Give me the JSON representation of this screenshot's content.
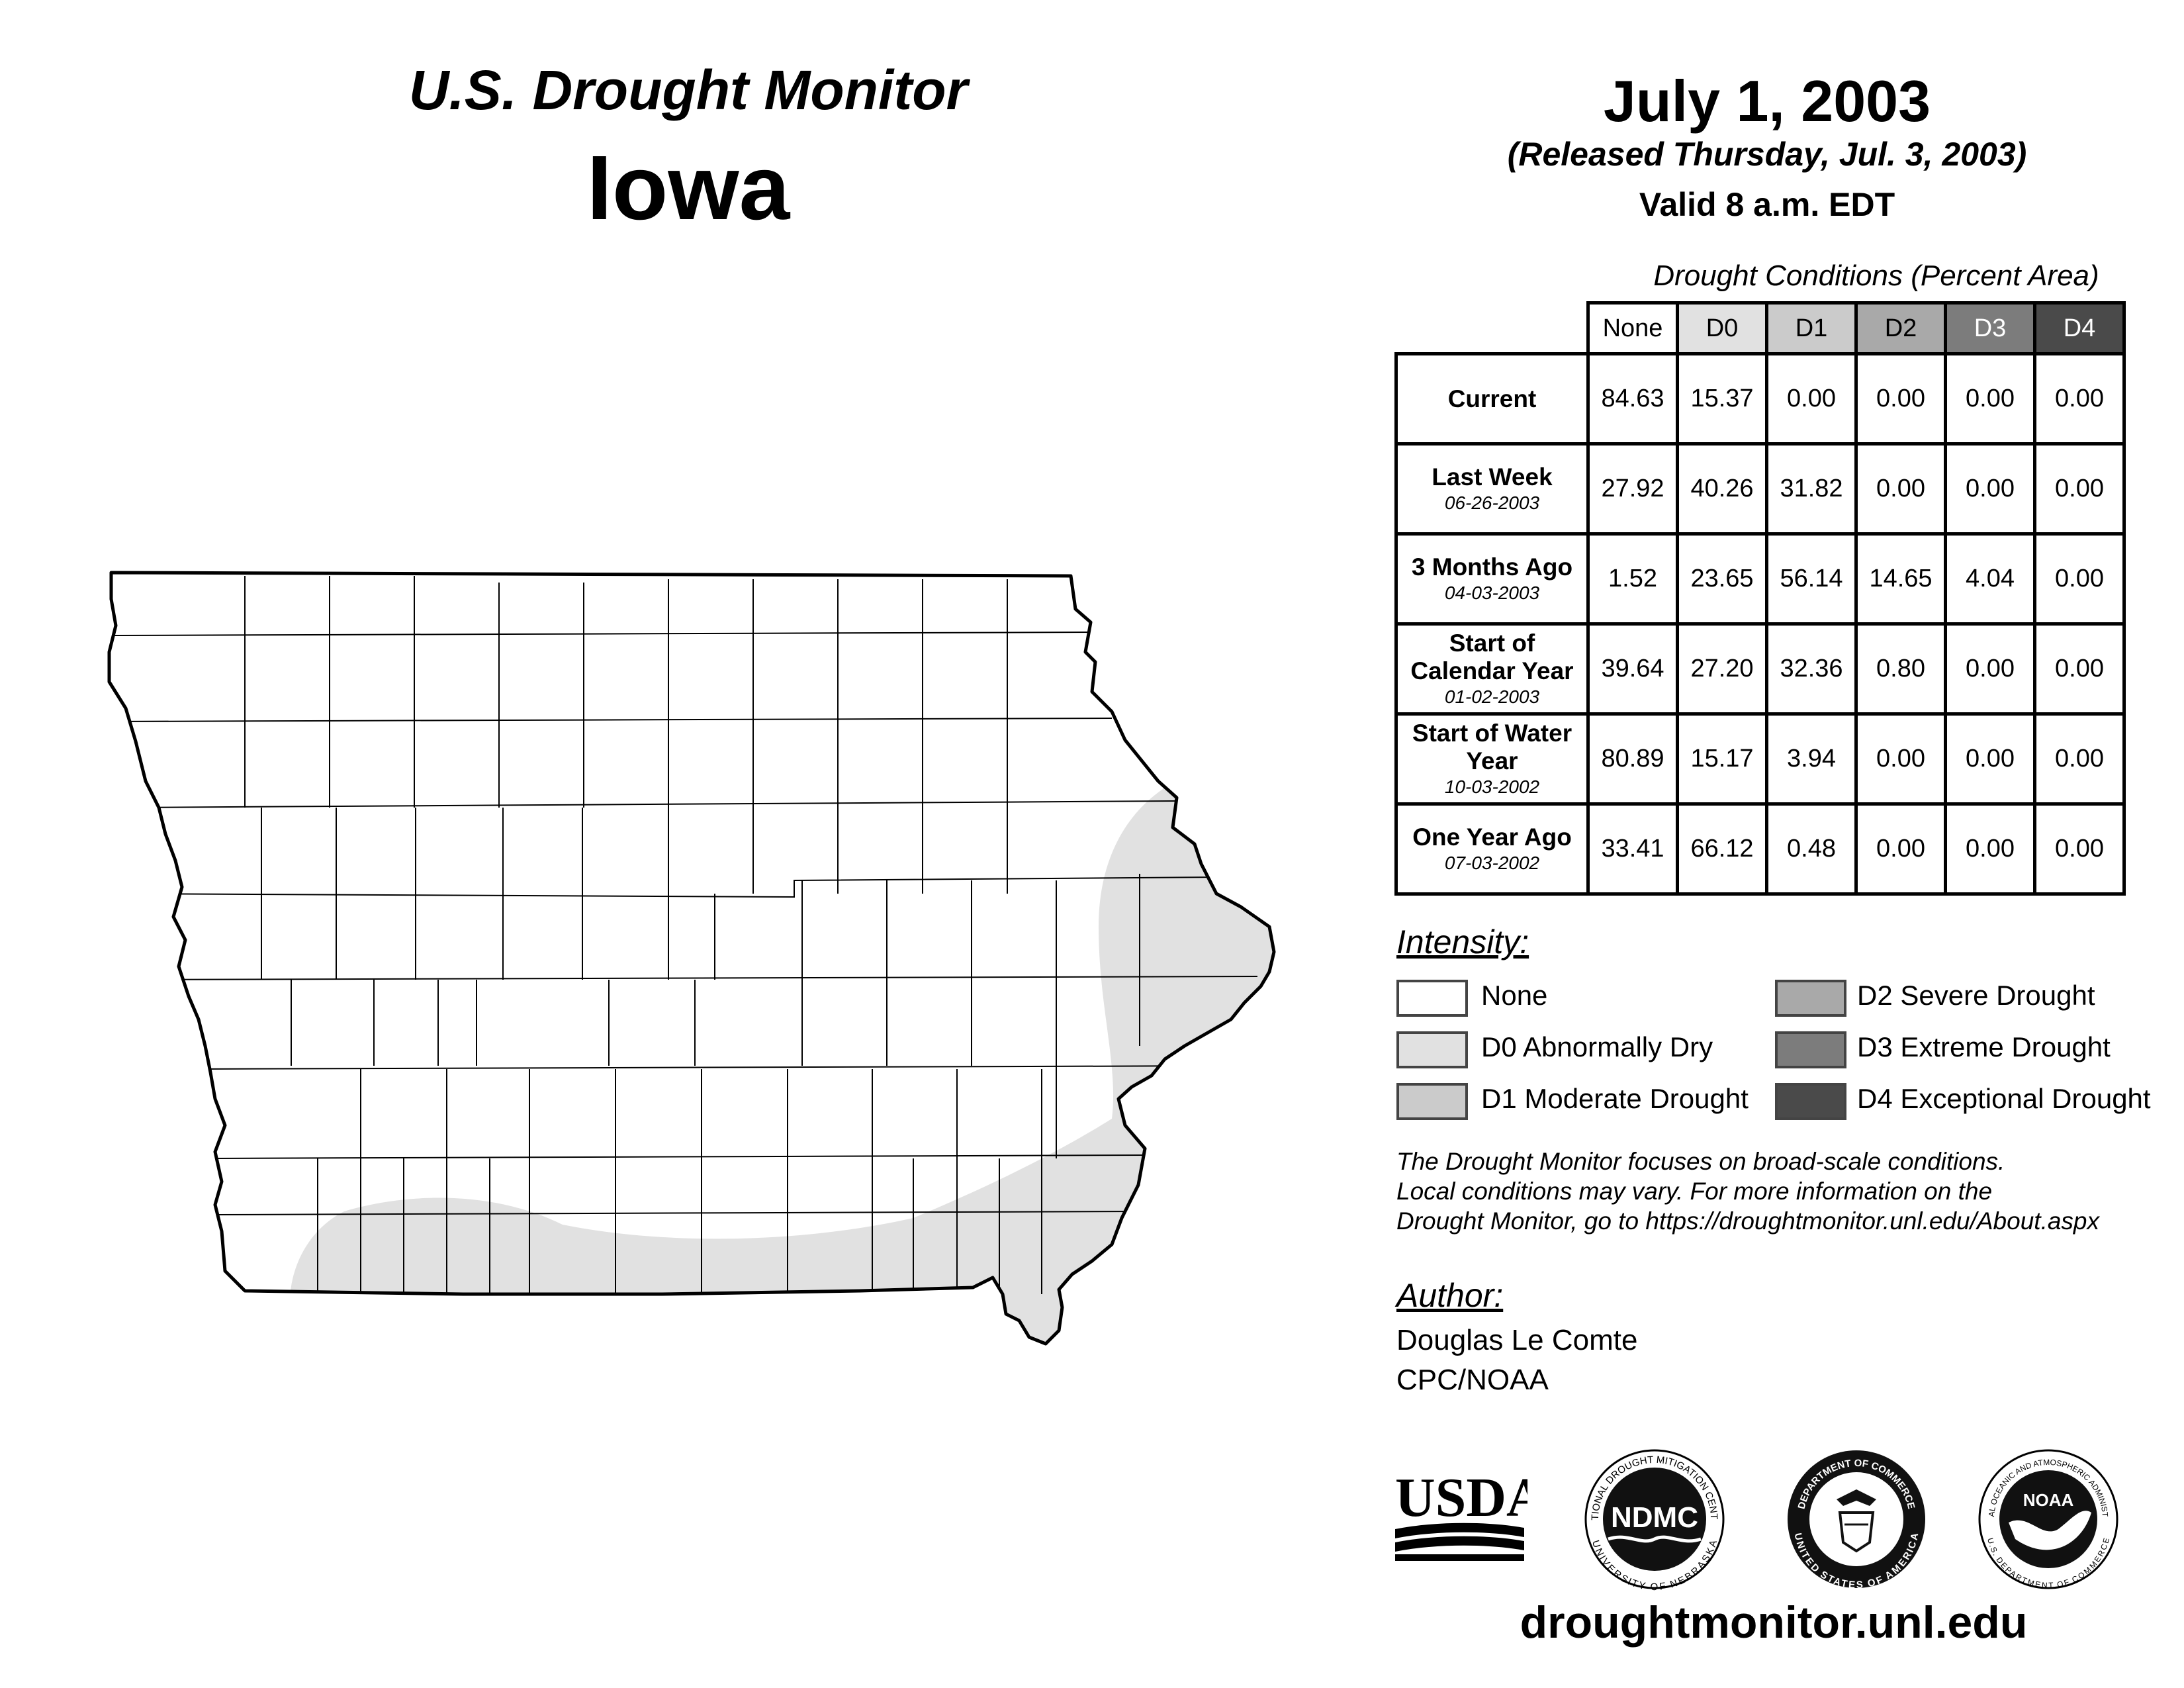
{
  "header": {
    "title": "U.S. Drought Monitor",
    "region": "Iowa",
    "date": "July 1, 2003",
    "released": "(Released Thursday, Jul. 3, 2003)",
    "valid": "Valid 8 a.m. EDT"
  },
  "table": {
    "caption": "Drought Conditions (Percent Area)",
    "columns": [
      "None",
      "D0",
      "D1",
      "D2",
      "D3",
      "D4"
    ],
    "rows": [
      {
        "label": "Current",
        "date": "",
        "values": [
          "84.63",
          "15.37",
          "0.00",
          "0.00",
          "0.00",
          "0.00"
        ]
      },
      {
        "label": "Last Week",
        "date": "06-26-2003",
        "values": [
          "27.92",
          "40.26",
          "31.82",
          "0.00",
          "0.00",
          "0.00"
        ]
      },
      {
        "label": "3 Months Ago",
        "date": "04-03-2003",
        "values": [
          "1.52",
          "23.65",
          "56.14",
          "14.65",
          "4.04",
          "0.00"
        ]
      },
      {
        "label": "Start of Calendar Year",
        "date": "01-02-2003",
        "values": [
          "39.64",
          "27.20",
          "32.36",
          "0.80",
          "0.00",
          "0.00"
        ]
      },
      {
        "label": "Start of Water Year",
        "date": "10-03-2002",
        "values": [
          "80.89",
          "15.17",
          "3.94",
          "0.00",
          "0.00",
          "0.00"
        ]
      },
      {
        "label": "One Year Ago",
        "date": "07-03-2002",
        "values": [
          "33.41",
          "66.12",
          "0.48",
          "0.00",
          "0.00",
          "0.00"
        ]
      }
    ]
  },
  "legend": {
    "heading": "Intensity:",
    "items": [
      {
        "label": "None",
        "color": "#ffffff"
      },
      {
        "label": "D0 Abnormally Dry",
        "color": "#e1e1e1"
      },
      {
        "label": "D1 Moderate Drought",
        "color": "#cbcbcb"
      },
      {
        "label": "D2 Severe Drought",
        "color": "#a9a9a9"
      },
      {
        "label": "D3 Extreme Drought",
        "color": "#7c7c7c"
      },
      {
        "label": "D4 Exceptional Drought",
        "color": "#4a4a4a"
      }
    ]
  },
  "note": {
    "line1": "The Drought Monitor focuses on broad-scale conditions.",
    "line2": "Local conditions may vary. For more information on the",
    "line3": "Drought Monitor, go to https://droughtmonitor.unl.edu/About.aspx"
  },
  "author": {
    "heading": "Author:",
    "name": "Douglas Le Comte",
    "org": "CPC/NOAA"
  },
  "logos": {
    "usda": "USDA",
    "ndmc": "NDMC",
    "ndmc_ring_top": "NATIONAL DROUGHT MITIGATION CENTER",
    "ndmc_ring_bottom": "UNIVERSITY OF NEBRASKA",
    "doc_ring_top": "DEPARTMENT OF COMMERCE",
    "doc_ring_bottom": "UNITED STATES OF AMERICA",
    "noaa": "NOAA",
    "noaa_ring_top": "NATIONAL OCEANIC AND ATMOSPHERIC ADMINISTRATION",
    "noaa_ring_bottom": "U.S. DEPARTMENT OF COMMERCE"
  },
  "footer": {
    "url": "droughtmonitor.unl.edu"
  },
  "map": {
    "state": "Iowa",
    "d0_fill": "#e1e1e1",
    "line_color": "#000000"
  }
}
